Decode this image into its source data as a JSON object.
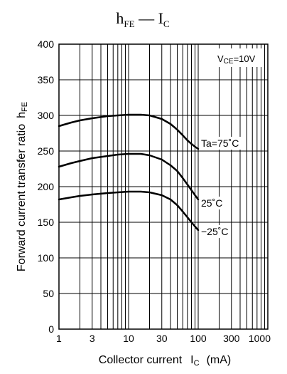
{
  "chart_data": {
    "type": "line",
    "title": {
      "main": "h",
      "main_sub": "FE",
      "sep": " — ",
      "second": "I",
      "second_sub": "C"
    },
    "xlabel": {
      "text": "Collector current",
      "sym": "I",
      "sym_sub": "C",
      "unit": "(mA)"
    },
    "ylabel": {
      "text": "Forward current transfer ratio",
      "sym": "h",
      "sym_sub": "FE"
    },
    "x_scale": "log",
    "xlim": [
      1,
      1000
    ],
    "ylim": [
      0,
      400
    ],
    "x_ticks": [
      1,
      3,
      10,
      30,
      100,
      300,
      1000
    ],
    "x_tick_labels": [
      "1",
      "3",
      "10",
      "30",
      "100",
      "300",
      "1000"
    ],
    "y_ticks": [
      0,
      50,
      100,
      150,
      200,
      250,
      300,
      350,
      400
    ],
    "y_tick_labels": [
      "0",
      "50",
      "100",
      "150",
      "200",
      "250",
      "300",
      "350",
      "400"
    ],
    "grid": true,
    "condition": {
      "text": "V",
      "sub": "CE",
      "rest": "=10V"
    },
    "series": [
      {
        "label": "Ta=75˚C",
        "x": [
          1,
          1.5,
          2,
          3,
          5,
          7,
          10,
          15,
          20,
          30,
          40,
          50,
          60,
          70,
          80,
          90,
          100
        ],
        "y": [
          285,
          290,
          293,
          296,
          299,
          300,
          301,
          301,
          300,
          295,
          288,
          280,
          272,
          265,
          260,
          256,
          253
        ]
      },
      {
        "label": "25˚C",
        "x": [
          1,
          1.5,
          2,
          3,
          5,
          7,
          10,
          15,
          20,
          30,
          40,
          50,
          60,
          70,
          80,
          90,
          100
        ],
        "y": [
          228,
          233,
          236,
          240,
          243,
          245,
          246,
          246,
          244,
          238,
          230,
          222,
          212,
          203,
          195,
          188,
          182
        ]
      },
      {
        "label": "−25˚C",
        "x": [
          1,
          1.5,
          2,
          3,
          5,
          7,
          10,
          15,
          20,
          30,
          40,
          50,
          60,
          70,
          80,
          90,
          100
        ],
        "y": [
          182,
          185,
          187,
          189,
          191,
          192,
          193,
          193,
          192,
          188,
          182,
          174,
          165,
          157,
          150,
          144,
          139
        ]
      }
    ]
  }
}
